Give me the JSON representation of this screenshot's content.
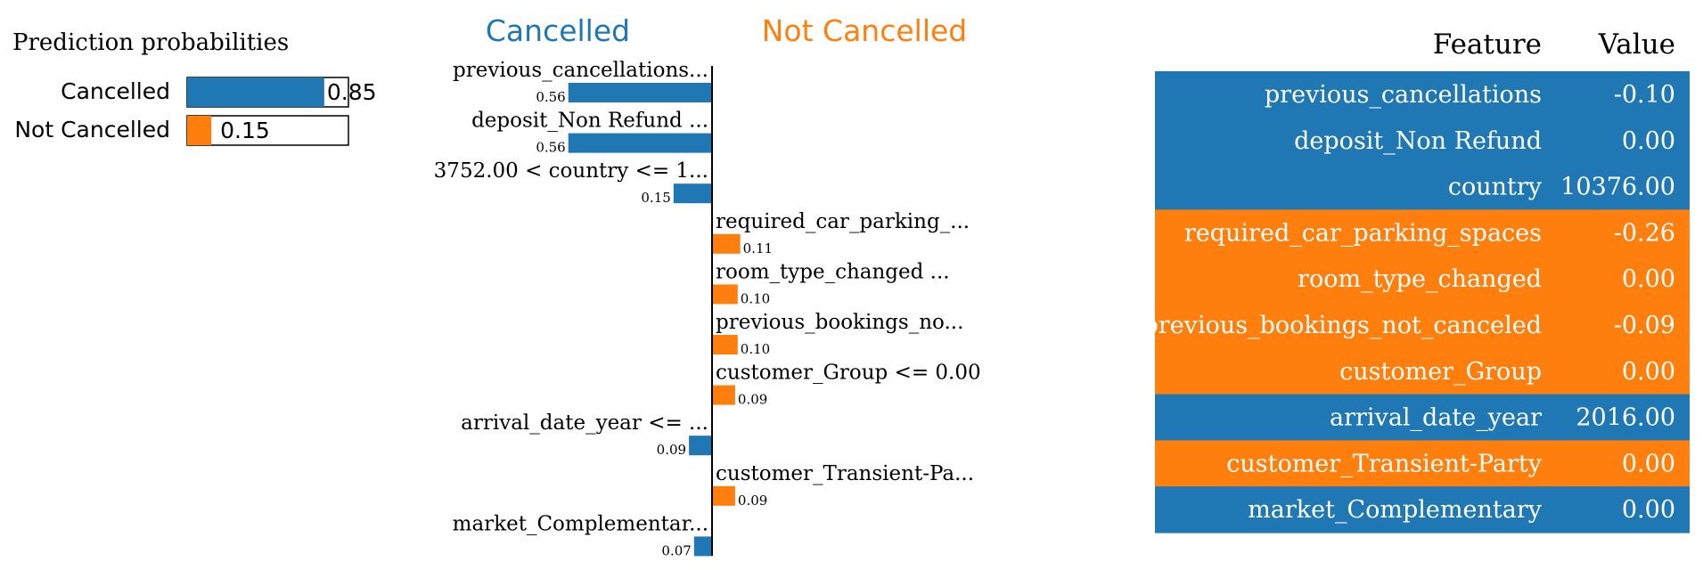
{
  "colors": {
    "cancelled": "#1f77b4",
    "not_cancelled": "#ff7f0e",
    "text": "#000000"
  },
  "probabilities": {
    "title": "Prediction probabilities",
    "items": [
      {
        "label": "Cancelled",
        "value": 0.85,
        "value_label": "0.85",
        "class": "cancelled"
      },
      {
        "label": "Not Cancelled",
        "value": 0.15,
        "value_label": "0.15",
        "class": "not_cancelled"
      }
    ]
  },
  "chart_data": {
    "type": "bar",
    "orientation": "horizontal",
    "headers": {
      "left": "Cancelled",
      "right": "Not Cancelled"
    },
    "features": [
      {
        "label": "previous_cancellations...",
        "weight": 0.56,
        "weight_label": "0.56",
        "class": "cancelled"
      },
      {
        "label": "deposit_Non Refund ...",
        "weight": 0.56,
        "weight_label": "0.56",
        "class": "cancelled"
      },
      {
        "label": "3752.00 < country <= 1...",
        "weight": 0.15,
        "weight_label": "0.15",
        "class": "cancelled"
      },
      {
        "label": "required_car_parking_...",
        "weight": 0.11,
        "weight_label": "0.11",
        "class": "not_cancelled"
      },
      {
        "label": "room_type_changed ...",
        "weight": 0.1,
        "weight_label": "0.10",
        "class": "not_cancelled"
      },
      {
        "label": "previous_bookings_no...",
        "weight": 0.1,
        "weight_label": "0.10",
        "class": "not_cancelled"
      },
      {
        "label": "customer_Group <= 0.00",
        "weight": 0.09,
        "weight_label": "0.09",
        "class": "not_cancelled"
      },
      {
        "label": "arrival_date_year <= ...",
        "weight": 0.09,
        "weight_label": "0.09",
        "class": "cancelled"
      },
      {
        "label": "customer_Transient-Pa...",
        "weight": 0.09,
        "weight_label": "0.09",
        "class": "not_cancelled"
      },
      {
        "label": "market_Complementar...",
        "weight": 0.07,
        "weight_label": "0.07",
        "class": "cancelled"
      }
    ]
  },
  "feature_table": {
    "headers": {
      "feature": "Feature",
      "value": "Value"
    },
    "rows": [
      {
        "feature": "previous_cancellations",
        "value": "-0.10",
        "class": "cancelled"
      },
      {
        "feature": "deposit_Non Refund",
        "value": "0.00",
        "class": "cancelled"
      },
      {
        "feature": "country",
        "value": "10376.00",
        "class": "cancelled"
      },
      {
        "feature": "required_car_parking_spaces",
        "value": "-0.26",
        "class": "not_cancelled"
      },
      {
        "feature": "room_type_changed",
        "value": "0.00",
        "class": "not_cancelled"
      },
      {
        "feature": "previous_bookings_not_canceled",
        "value": "-0.09",
        "class": "not_cancelled"
      },
      {
        "feature": "customer_Group",
        "value": "0.00",
        "class": "not_cancelled"
      },
      {
        "feature": "arrival_date_year",
        "value": "2016.00",
        "class": "cancelled"
      },
      {
        "feature": "customer_Transient-Party",
        "value": "0.00",
        "class": "not_cancelled"
      },
      {
        "feature": "market_Complementary",
        "value": "0.00",
        "class": "cancelled"
      }
    ]
  }
}
